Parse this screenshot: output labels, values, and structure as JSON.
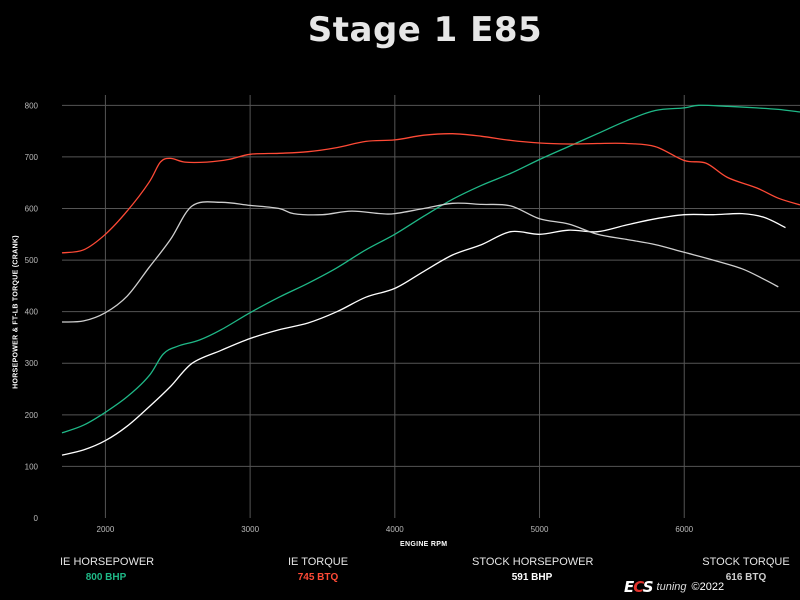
{
  "colors": {
    "background": "#000000",
    "grid": "#555555",
    "ie_horsepower": "#1fb887",
    "ie_torque": "#ff4a36",
    "stock_horsepower": "#ffffff",
    "stock_torque": "#cfcfcf"
  },
  "chart_data": {
    "type": "line",
    "title": "Stage 1 E85",
    "xlabel": "ENGINE RPM",
    "ylabel": "HORSEPOWER & FT-LB TORQUE (CRANK)",
    "xlim": [
      1700,
      6800
    ],
    "ylim": [
      0,
      820
    ],
    "x_ticks": [
      2000,
      3000,
      4000,
      5000,
      6000
    ],
    "y_ticks": [
      0,
      100,
      200,
      300,
      400,
      500,
      600,
      700,
      800
    ],
    "grid": true,
    "legend_position": "bottom",
    "series": [
      {
        "name": "IE HORSEPOWER",
        "color": "#1fb887",
        "points": [
          [
            1700,
            165
          ],
          [
            1850,
            180
          ],
          [
            2000,
            205
          ],
          [
            2150,
            235
          ],
          [
            2300,
            275
          ],
          [
            2400,
            318
          ],
          [
            2500,
            333
          ],
          [
            2650,
            345
          ],
          [
            2800,
            365
          ],
          [
            3000,
            398
          ],
          [
            3200,
            428
          ],
          [
            3400,
            455
          ],
          [
            3600,
            485
          ],
          [
            3800,
            520
          ],
          [
            4000,
            550
          ],
          [
            4200,
            585
          ],
          [
            4400,
            618
          ],
          [
            4600,
            645
          ],
          [
            4800,
            668
          ],
          [
            5000,
            695
          ],
          [
            5200,
            720
          ],
          [
            5400,
            745
          ],
          [
            5600,
            770
          ],
          [
            5800,
            790
          ],
          [
            6000,
            795
          ],
          [
            6100,
            800
          ],
          [
            6300,
            798
          ],
          [
            6500,
            795
          ],
          [
            6650,
            792
          ],
          [
            6800,
            787
          ]
        ]
      },
      {
        "name": "IE TORQUE",
        "color": "#ff4a36",
        "points": [
          [
            1700,
            514
          ],
          [
            1850,
            520
          ],
          [
            2000,
            550
          ],
          [
            2150,
            595
          ],
          [
            2300,
            650
          ],
          [
            2380,
            690
          ],
          [
            2450,
            697
          ],
          [
            2550,
            690
          ],
          [
            2700,
            690
          ],
          [
            2850,
            695
          ],
          [
            3000,
            705
          ],
          [
            3200,
            707
          ],
          [
            3400,
            710
          ],
          [
            3600,
            718
          ],
          [
            3800,
            730
          ],
          [
            4000,
            733
          ],
          [
            4200,
            742
          ],
          [
            4400,
            745
          ],
          [
            4600,
            740
          ],
          [
            4800,
            732
          ],
          [
            5000,
            727
          ],
          [
            5200,
            725
          ],
          [
            5400,
            726
          ],
          [
            5600,
            726
          ],
          [
            5800,
            720
          ],
          [
            6000,
            693
          ],
          [
            6150,
            688
          ],
          [
            6300,
            660
          ],
          [
            6500,
            640
          ],
          [
            6650,
            620
          ],
          [
            6800,
            607
          ]
        ]
      },
      {
        "name": "STOCK HORSEPOWER",
        "color": "#ffffff",
        "points": [
          [
            1700,
            122
          ],
          [
            1850,
            132
          ],
          [
            2000,
            150
          ],
          [
            2150,
            178
          ],
          [
            2300,
            215
          ],
          [
            2450,
            255
          ],
          [
            2600,
            300
          ],
          [
            2800,
            325
          ],
          [
            3000,
            348
          ],
          [
            3200,
            365
          ],
          [
            3400,
            378
          ],
          [
            3600,
            400
          ],
          [
            3800,
            428
          ],
          [
            4000,
            445
          ],
          [
            4200,
            478
          ],
          [
            4400,
            510
          ],
          [
            4600,
            530
          ],
          [
            4800,
            555
          ],
          [
            5000,
            550
          ],
          [
            5200,
            558
          ],
          [
            5400,
            555
          ],
          [
            5600,
            568
          ],
          [
            5800,
            580
          ],
          [
            6000,
            588
          ],
          [
            6200,
            588
          ],
          [
            6400,
            590
          ],
          [
            6550,
            583
          ],
          [
            6700,
            563
          ]
        ]
      },
      {
        "name": "STOCK TORQUE",
        "color": "#cfcfcf",
        "points": [
          [
            1700,
            380
          ],
          [
            1850,
            382
          ],
          [
            2000,
            398
          ],
          [
            2150,
            430
          ],
          [
            2300,
            485
          ],
          [
            2450,
            540
          ],
          [
            2600,
            605
          ],
          [
            2800,
            612
          ],
          [
            3000,
            606
          ],
          [
            3200,
            600
          ],
          [
            3300,
            590
          ],
          [
            3500,
            588
          ],
          [
            3700,
            595
          ],
          [
            3900,
            590
          ],
          [
            4000,
            590
          ],
          [
            4200,
            600
          ],
          [
            4400,
            610
          ],
          [
            4600,
            608
          ],
          [
            4800,
            605
          ],
          [
            5000,
            580
          ],
          [
            5200,
            570
          ],
          [
            5400,
            550
          ],
          [
            5600,
            540
          ],
          [
            5800,
            530
          ],
          [
            6000,
            515
          ],
          [
            6200,
            500
          ],
          [
            6400,
            483
          ],
          [
            6550,
            463
          ],
          [
            6650,
            448
          ]
        ]
      }
    ]
  },
  "legend": [
    {
      "name": "IE HORSEPOWER",
      "value": "800 BHP",
      "color": "#1fb887"
    },
    {
      "name": "IE TORQUE",
      "value": "745 BTQ",
      "color": "#ff4a36"
    },
    {
      "name": "STOCK HORSEPOWER",
      "value": "591 BHP",
      "color": "#ffffff"
    },
    {
      "name": "STOCK TORQUE",
      "value": "616 BTQ",
      "color": "#cfcfcf"
    }
  ],
  "brand": {
    "logo_prefix": "E",
    "logo_middle": "C",
    "logo_suffix": "S",
    "logo_tagline": "tuning",
    "year": "©2022"
  }
}
